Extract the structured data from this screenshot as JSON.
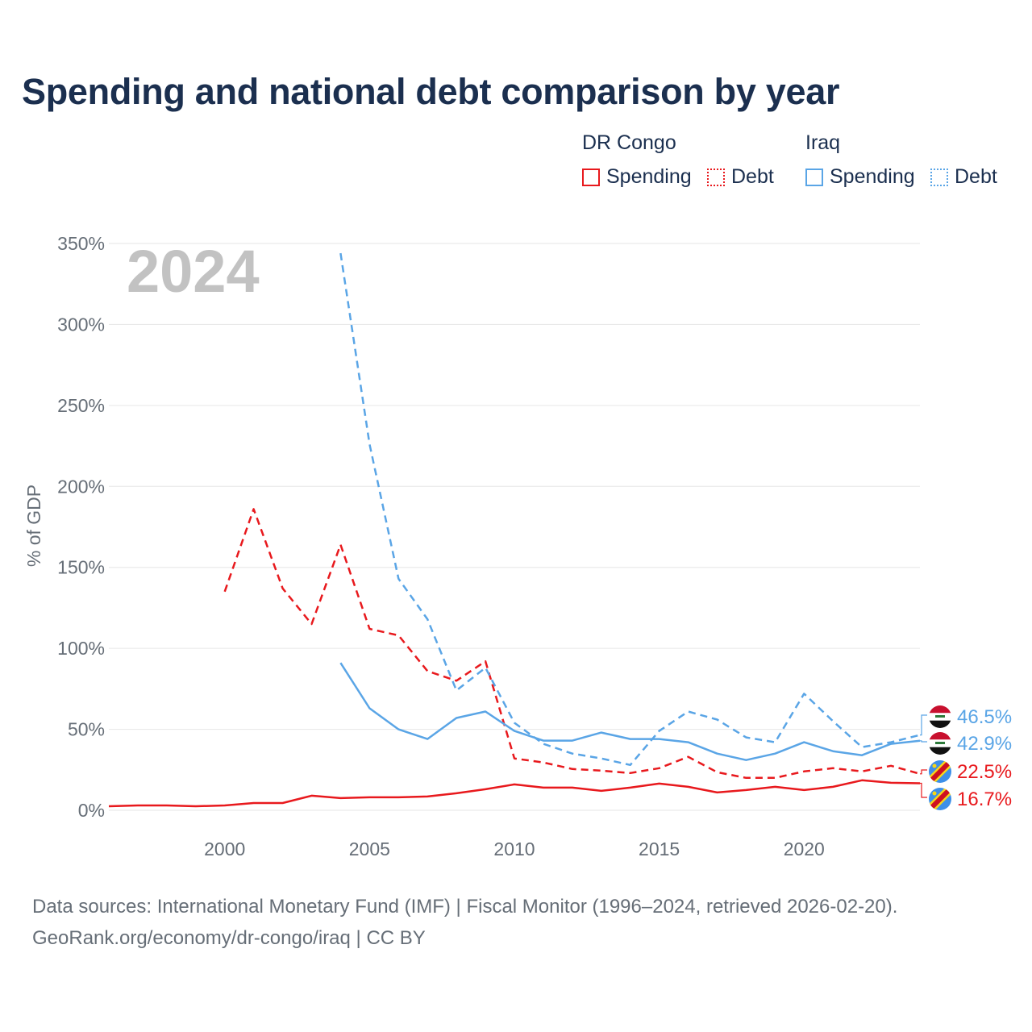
{
  "title": "Spending and national debt comparison by year",
  "year_watermark": "2024",
  "legend": {
    "groups": [
      {
        "country": "DR Congo",
        "color": "#e8191d",
        "items": [
          "Spending",
          "Debt"
        ]
      },
      {
        "country": "Iraq",
        "color": "#5aa5e6",
        "items": [
          "Spending",
          "Debt"
        ]
      }
    ]
  },
  "source_line1": "Data sources: International Monetary Fund (IMF) | Fiscal Monitor (1996–2024, retrieved 2026-02-20).",
  "source_line2": "GeoRank.org/economy/dr-congo/iraq | CC BY",
  "chart_data": {
    "type": "line",
    "title": "Spending and national debt comparison by year",
    "xlabel": "",
    "ylabel": "% of GDP",
    "xlim": [
      1996,
      2024
    ],
    "ylim": [
      0,
      350
    ],
    "x_ticks": [
      2000,
      2005,
      2010,
      2015,
      2020
    ],
    "y_ticks": [
      0,
      50,
      100,
      150,
      200,
      250,
      300,
      350
    ],
    "y_tick_labels": [
      "0%",
      "50%",
      "100%",
      "150%",
      "200%",
      "250%",
      "300%",
      "350%"
    ],
    "grid": true,
    "series": [
      {
        "name": "DR Congo Spending",
        "country": "DR Congo",
        "measure": "Spending",
        "color": "#e8191d",
        "dash": false,
        "x": [
          1996,
          1997,
          1998,
          1999,
          2000,
          2001,
          2002,
          2003,
          2004,
          2005,
          2006,
          2007,
          2008,
          2009,
          2010,
          2011,
          2012,
          2013,
          2014,
          2015,
          2016,
          2017,
          2018,
          2019,
          2020,
          2021,
          2022,
          2023,
          2024
        ],
        "values": [
          2.5,
          3,
          3,
          2.5,
          3,
          4.5,
          4.5,
          9,
          7.5,
          8,
          8,
          8.5,
          10.5,
          13,
          16,
          14,
          14,
          12,
          14,
          16.5,
          14.5,
          11,
          12.5,
          14.5,
          12.5,
          14.5,
          18.5,
          17,
          16.7
        ],
        "end_label": "16.7%"
      },
      {
        "name": "DR Congo Debt",
        "country": "DR Congo",
        "measure": "Debt",
        "color": "#e8191d",
        "dash": true,
        "x": [
          2000,
          2001,
          2002,
          2003,
          2004,
          2005,
          2006,
          2007,
          2008,
          2009,
          2010,
          2011,
          2012,
          2013,
          2014,
          2015,
          2016,
          2017,
          2018,
          2019,
          2020,
          2021,
          2022,
          2023,
          2024
        ],
        "values": [
          135,
          186,
          137,
          115,
          164,
          112,
          108,
          86,
          80,
          92,
          32,
          29.5,
          25.5,
          24.5,
          23,
          26,
          33,
          23.5,
          20,
          20,
          24,
          26,
          24,
          27.5,
          22.5
        ],
        "end_label": "22.5%"
      },
      {
        "name": "Iraq Spending",
        "country": "Iraq",
        "measure": "Spending",
        "color": "#5aa5e6",
        "dash": false,
        "x": [
          2004,
          2005,
          2006,
          2007,
          2008,
          2009,
          2010,
          2011,
          2012,
          2013,
          2014,
          2015,
          2016,
          2017,
          2018,
          2019,
          2020,
          2021,
          2022,
          2023,
          2024
        ],
        "values": [
          91,
          63,
          50,
          44,
          57,
          61,
          49,
          43,
          43,
          48,
          44,
          44,
          42,
          35,
          31,
          35,
          42,
          36.5,
          34,
          41,
          42.9
        ],
        "end_label": "42.9%"
      },
      {
        "name": "Iraq Debt",
        "country": "Iraq",
        "measure": "Debt",
        "color": "#5aa5e6",
        "dash": true,
        "x": [
          2004,
          2005,
          2006,
          2007,
          2008,
          2009,
          2010,
          2011,
          2012,
          2013,
          2014,
          2015,
          2016,
          2017,
          2018,
          2019,
          2020,
          2021,
          2022,
          2023,
          2024
        ],
        "values": [
          344,
          226,
          143,
          118,
          74,
          88,
          54,
          41,
          35,
          32,
          28,
          49,
          61,
          56,
          45,
          42,
          72,
          55,
          39,
          42,
          46.5
        ],
        "end_label": "46.5%"
      }
    ]
  }
}
